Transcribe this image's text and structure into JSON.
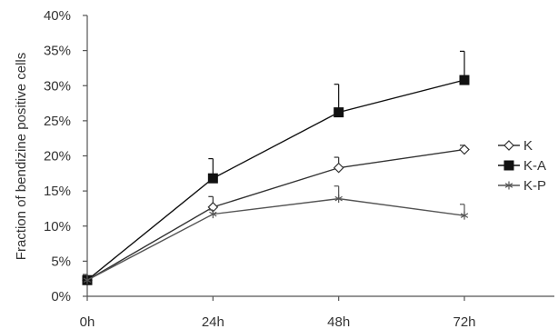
{
  "chart_data": {
    "type": "line",
    "title": "",
    "xlabel": "",
    "ylabel": "Fraction of bendizine positive cells",
    "categories": [
      "0h",
      "24h",
      "48h",
      "72h"
    ],
    "ylim": [
      0,
      40
    ],
    "y_ticks": [
      0,
      5,
      10,
      15,
      20,
      25,
      30,
      35,
      40
    ],
    "y_tick_labels": [
      "0%",
      "5%",
      "10%",
      "15%",
      "20%",
      "25%",
      "30%",
      "35%",
      "40%"
    ],
    "grid": false,
    "legend_position": "right",
    "error_bars": "upper",
    "series": [
      {
        "name": "K",
        "marker": "diamond-open",
        "color": "#333333",
        "values": [
          2.3,
          12.7,
          18.3,
          20.9
        ],
        "errors": [
          0.8,
          1.5,
          1.5,
          0.6
        ]
      },
      {
        "name": "K-A",
        "marker": "square-filled",
        "color": "#111111",
        "values": [
          2.3,
          16.8,
          26.2,
          30.8
        ],
        "errors": [
          0.8,
          2.8,
          4.0,
          4.1
        ]
      },
      {
        "name": "K-P",
        "marker": "star",
        "color": "#555555",
        "values": [
          2.3,
          11.7,
          13.9,
          11.5
        ],
        "errors": [
          0.8,
          0.6,
          1.8,
          1.6
        ]
      }
    ]
  }
}
